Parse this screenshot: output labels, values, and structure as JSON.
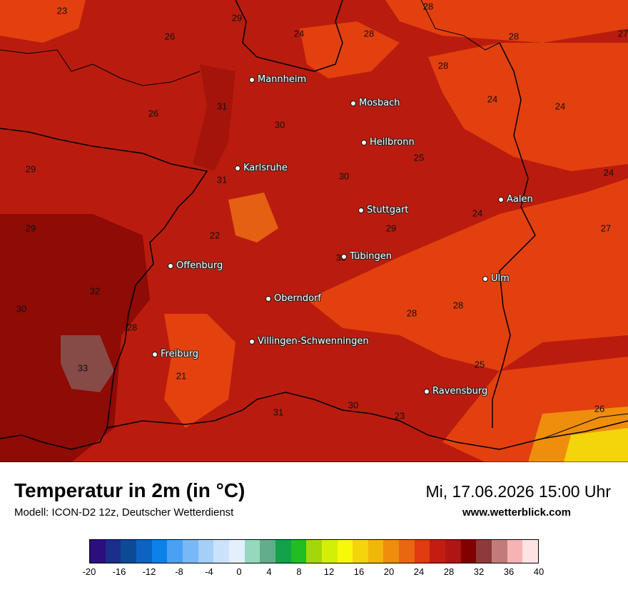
{
  "title": "Temperatur in 2m (in °C)",
  "model": "Modell: ICON-D2 12z, Deutscher Wetterdienst",
  "datetime": "Mi, 17.06.2026 15:00 Uhr",
  "website": "www.wetterblick.com",
  "cities": [
    {
      "name": "Mannheim"
    },
    {
      "name": "Mosbach"
    },
    {
      "name": "Heilbronn"
    },
    {
      "name": "Karlsruhe"
    },
    {
      "name": "Stuttgart"
    },
    {
      "name": "Aalen"
    },
    {
      "name": "Tübingen"
    },
    {
      "name": "Offenburg"
    },
    {
      "name": "Ulm"
    },
    {
      "name": "Oberndorf"
    },
    {
      "name": "Villingen-Schwenningen"
    },
    {
      "name": "Freiburg"
    },
    {
      "name": "Ravensburg"
    }
  ],
  "temperature_labels": [
    "23",
    "29",
    "24",
    "28",
    "28",
    "27",
    "26",
    "28",
    "28",
    "24",
    "24",
    "31",
    "26",
    "30",
    "29",
    "25",
    "24",
    "31",
    "30",
    "24",
    "29",
    "29",
    "27",
    "22",
    "30",
    "32",
    "30",
    "28",
    "28",
    "28",
    "33",
    "21",
    "25",
    "26",
    "30",
    "23",
    "31"
  ],
  "legend": {
    "colors": [
      "#2c0e7f",
      "#1a2e8a",
      "#0c4a96",
      "#0e63c2",
      "#0a82e8",
      "#4aa0f2",
      "#78b8f6",
      "#a4cff8",
      "#cce2fb",
      "#e4effc",
      "#94d9bd",
      "#62ad8a",
      "#13a14a",
      "#21bd22",
      "#a5d608",
      "#d3ef06",
      "#f8f809",
      "#f4d40b",
      "#f0b60a",
      "#ee8e0c",
      "#e96710",
      "#e23a11",
      "#c31d12",
      "#ad1612",
      "#810000",
      "#8d3a3a",
      "#c17b7b",
      "#f5b3b3",
      "#fde3e3"
    ],
    "ticks": [
      "-20",
      "-16",
      "-12",
      "-8",
      "-4",
      "0",
      "4",
      "8",
      "12",
      "16",
      "20",
      "24",
      "28",
      "32",
      "36",
      "40"
    ]
  }
}
